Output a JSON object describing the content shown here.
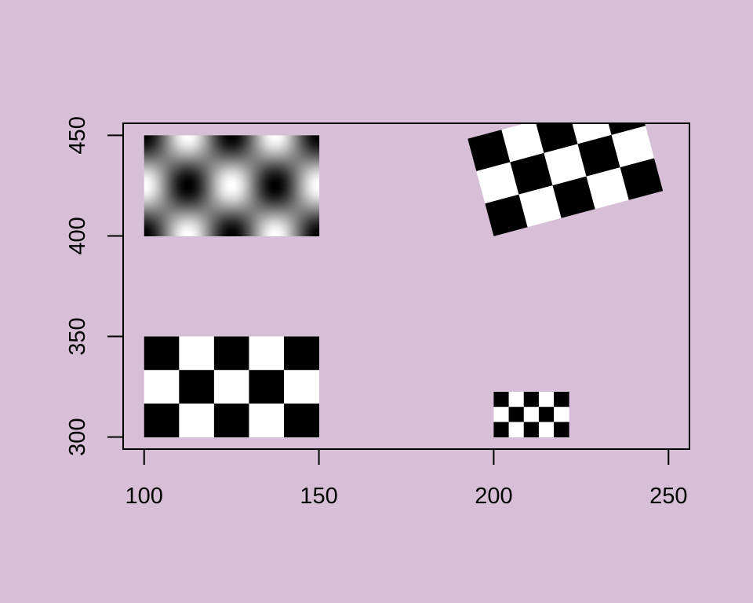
{
  "colors": {
    "background": "#d8bfd8",
    "ink": "#000000",
    "light": "#ffffff"
  },
  "chart_data": {
    "type": "heatmap",
    "title": "",
    "xlabel": "",
    "ylabel": "",
    "xlim": [
      94,
      256
    ],
    "ylim": [
      294,
      456
    ],
    "x_ticks": [
      100,
      150,
      200,
      250
    ],
    "y_ticks": [
      300,
      350,
      400,
      450
    ],
    "x_tick_labels": [
      "100",
      "150",
      "200",
      "250"
    ],
    "y_tick_labels": [
      "300",
      "350",
      "400",
      "450"
    ],
    "grid": false,
    "legend": "none",
    "images": [
      {
        "name": "smooth-pattern",
        "kind": "smooth-checker",
        "x": [
          100,
          150
        ],
        "y": [
          400,
          450
        ],
        "cols": 5,
        "rows": 3,
        "angle": 0
      },
      {
        "name": "large-checkerboard",
        "kind": "checker",
        "x": [
          100,
          150
        ],
        "y": [
          300,
          350
        ],
        "cols": 5,
        "rows": 3,
        "angle": 0
      },
      {
        "name": "small-checkerboard",
        "kind": "checker",
        "x": [
          200,
          221.5
        ],
        "y": [
          300,
          322.5
        ],
        "cols": 5,
        "rows": 3,
        "angle": 0
      },
      {
        "name": "rotated-checkerboard",
        "kind": "checker",
        "x": [
          200,
          250
        ],
        "y": [
          400,
          450
        ],
        "cols": 5,
        "rows": 3,
        "angle": 15
      }
    ]
  }
}
